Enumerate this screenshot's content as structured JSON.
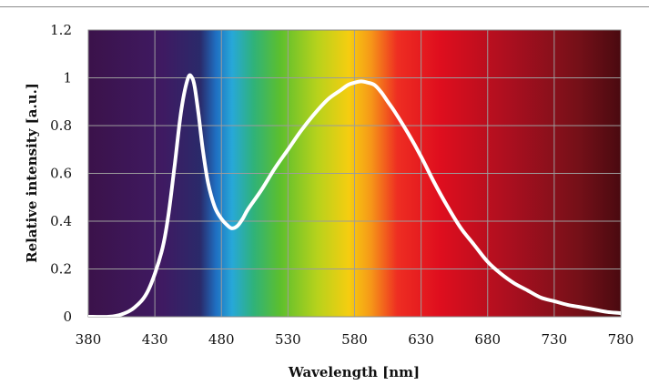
{
  "chart_data": {
    "type": "line",
    "title": "",
    "xlabel": "Wavelength [nm]",
    "ylabel": "Relative intensity [a.u.]",
    "xlim": [
      380,
      780
    ],
    "ylim": [
      0,
      1.2
    ],
    "x_ticks": [
      "380",
      "430",
      "480",
      "530",
      "580",
      "630",
      "680",
      "730",
      "780"
    ],
    "y_ticks": [
      "0",
      "0.2",
      "0.4",
      "0.6",
      "0.8",
      "1",
      "1.2"
    ],
    "grid": true,
    "legend": "none",
    "background": "visible-spectrum color gradient",
    "line_color": "#ffffff",
    "series": [
      {
        "x": [
          380,
          395,
          405,
          415,
          425,
          435,
          440,
          445,
          450,
          455,
          458,
          460,
          463,
          466,
          470,
          475,
          480,
          485,
          488,
          492,
          496,
          500,
          510,
          520,
          530,
          540,
          550,
          560,
          570,
          575,
          580,
          585,
          590,
          595,
          600,
          605,
          610,
          620,
          630,
          640,
          650,
          660,
          670,
          680,
          690,
          700,
          710,
          720,
          730,
          740,
          750,
          760,
          770,
          780
        ],
        "y": [
          0,
          0,
          0.01,
          0.04,
          0.11,
          0.27,
          0.42,
          0.64,
          0.87,
          1.0,
          1.0,
          0.96,
          0.84,
          0.7,
          0.56,
          0.46,
          0.41,
          0.38,
          0.37,
          0.38,
          0.41,
          0.45,
          0.53,
          0.62,
          0.7,
          0.78,
          0.85,
          0.91,
          0.95,
          0.97,
          0.98,
          0.985,
          0.98,
          0.97,
          0.94,
          0.9,
          0.86,
          0.77,
          0.67,
          0.56,
          0.46,
          0.37,
          0.3,
          0.23,
          0.18,
          0.14,
          0.11,
          0.08,
          0.065,
          0.05,
          0.04,
          0.03,
          0.02,
          0.015
        ]
      }
    ]
  }
}
